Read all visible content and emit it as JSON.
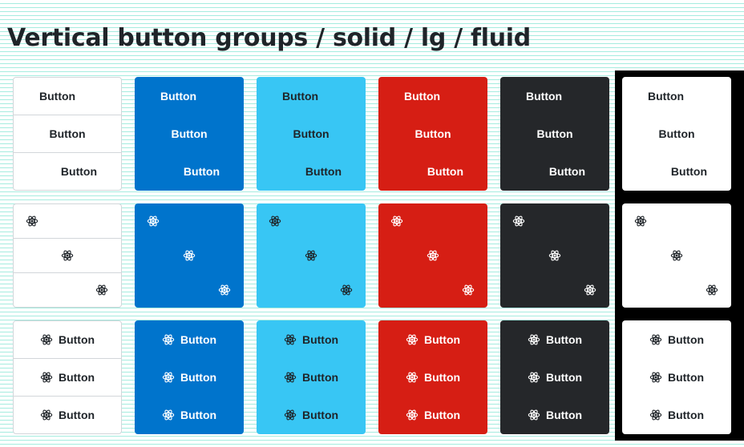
{
  "page": {
    "title": "Vertical button groups / solid / lg / fluid"
  },
  "button_label": "Button",
  "icon": "react-atom-icon",
  "variants": [
    {
      "name": "default",
      "background": "#ffffff",
      "text": "#1f2429"
    },
    {
      "name": "primary",
      "background": "#0074cc",
      "text": "#ffffff"
    },
    {
      "name": "info",
      "background": "#38c6f4",
      "text": "#1f2429"
    },
    {
      "name": "danger",
      "background": "#d61e14",
      "text": "#ffffff"
    },
    {
      "name": "dark",
      "background": "#25272a",
      "text": "#ffffff"
    },
    {
      "name": "inverse",
      "background": "#ffffff",
      "text": "#1f2429"
    }
  ],
  "rows": [
    {
      "kind": "text",
      "alignments": [
        "start",
        "center",
        "end"
      ]
    },
    {
      "kind": "icon",
      "alignments": [
        "start",
        "center",
        "end"
      ]
    },
    {
      "kind": "icon-text",
      "alignments": [
        "center",
        "center",
        "center"
      ]
    }
  ]
}
